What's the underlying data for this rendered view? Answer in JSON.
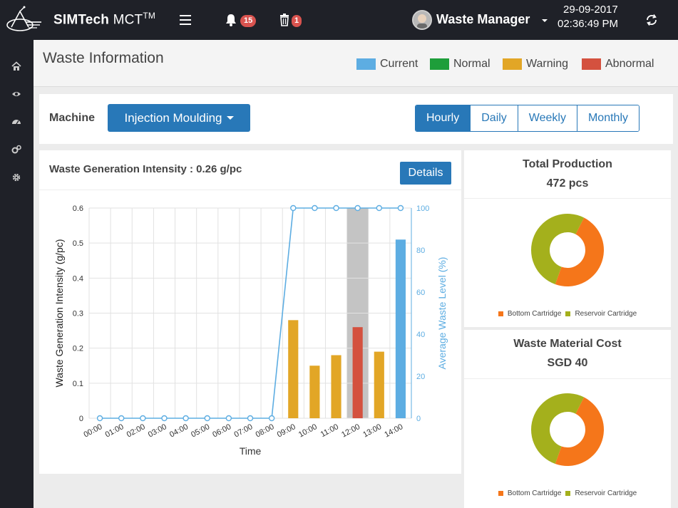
{
  "app": {
    "brand_bold": "SIMTech",
    "brand_light": "MCT",
    "brand_sup": "TM",
    "notifications_count": "15",
    "trash_count": "1",
    "user_name": "Waste Manager",
    "date": "29-09-2017",
    "time": "02:36:49 PM"
  },
  "sidebar": {
    "icons": [
      "home-icon",
      "eye-icon",
      "dashboard-icon",
      "cogs-icon",
      "gear-icon"
    ]
  },
  "page": {
    "title": "Waste Information",
    "legend": [
      {
        "label": "Current",
        "color": "#5dade2"
      },
      {
        "label": "Normal",
        "color": "#1e9e3a"
      },
      {
        "label": "Warning",
        "color": "#e2a626"
      },
      {
        "label": "Abnormal",
        "color": "#d4513f"
      }
    ]
  },
  "filters": {
    "machine_label": "Machine",
    "machine_value": "Injection Moulding",
    "periods": [
      "Hourly",
      "Daily",
      "Weekly",
      "Monthly"
    ],
    "active_period": "Hourly"
  },
  "chart": {
    "title": "Waste Generation Intensity : 0.26 g/pc",
    "details_label": "Details"
  },
  "chart_data": {
    "type": "bar",
    "title": "Waste Generation Intensity : 0.26 g/pc",
    "xlabel": "Time",
    "ylabel": "Waste Generation Intensity (g/pc)",
    "y2label": "Average Waste Level (%)",
    "ylim": [
      0,
      0.6
    ],
    "y2lim": [
      0,
      100
    ],
    "yticks": [
      "0",
      "0.1",
      "0.2",
      "0.3",
      "0.4",
      "0.5",
      "0.6"
    ],
    "y2ticks": [
      "0",
      "20",
      "40",
      "60",
      "80",
      "100"
    ],
    "categories": [
      "00:00",
      "01:00",
      "02:00",
      "03:00",
      "04:00",
      "05:00",
      "06:00",
      "07:00",
      "08:00",
      "09:00",
      "10:00",
      "11:00",
      "12:00",
      "13:00",
      "14:00"
    ],
    "series": [
      {
        "values": [
          0,
          0,
          0,
          0,
          0,
          0,
          0,
          0,
          0,
          0.28,
          0.15,
          0.18,
          0.26,
          0.19,
          0.51
        ],
        "colors": [
          "#e2a626",
          "#e2a626",
          "#e2a626",
          "#e2a626",
          "#e2a626",
          "#e2a626",
          "#e2a626",
          "#e2a626",
          "#e2a626",
          "#e2a626",
          "#e2a626",
          "#e2a626",
          "#d4513f",
          "#e2a626",
          "#5dade2"
        ]
      },
      {
        "type": "line",
        "axis": "right",
        "values": [
          0,
          0,
          0,
          0,
          0,
          0,
          0,
          0,
          0,
          100,
          100,
          100,
          100,
          100,
          100
        ],
        "color": "#5dade2"
      }
    ],
    "highlight_category": "12:00",
    "grid": true
  },
  "production": {
    "title": "Total Production",
    "value": "472 pcs",
    "legend": [
      {
        "label": "Bottom Cartridge",
        "color": "#f5761a"
      },
      {
        "label": "Reservoir Cartridge",
        "color": "#a4b01c"
      }
    ],
    "donut": {
      "type": "pie",
      "values": [
        0.48,
        0.52
      ]
    }
  },
  "cost": {
    "title": "Waste Material Cost",
    "value": "SGD 40",
    "legend": [
      {
        "label": "Bottom Cartridge",
        "color": "#f5761a"
      },
      {
        "label": "Reservoir Cartridge",
        "color": "#a4b01c"
      }
    ],
    "donut": {
      "type": "pie",
      "values": [
        0.48,
        0.52
      ]
    }
  }
}
